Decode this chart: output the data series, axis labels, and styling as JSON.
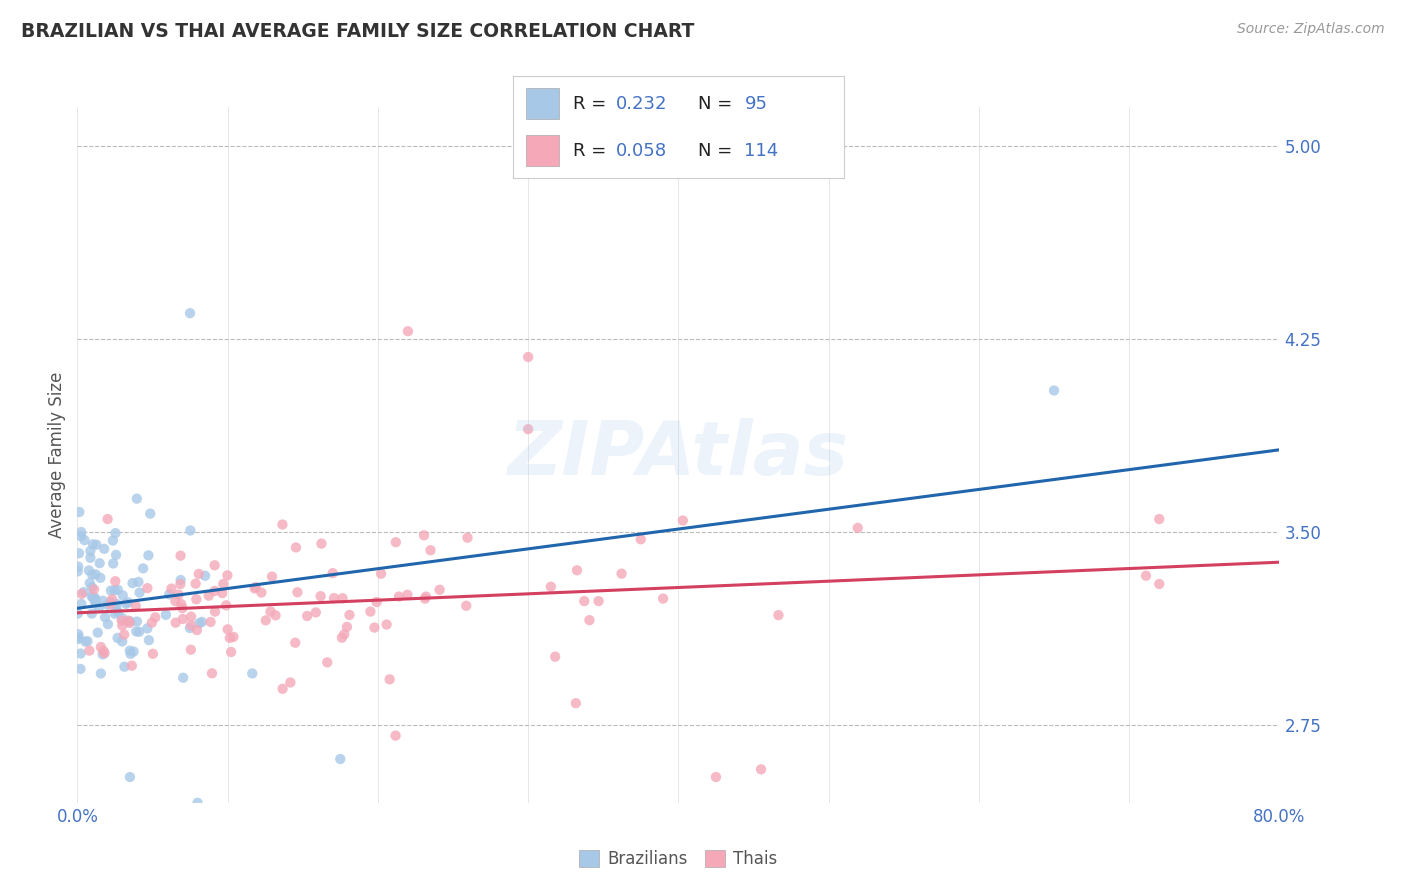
{
  "title": "BRAZILIAN VS THAI AVERAGE FAMILY SIZE CORRELATION CHART",
  "source_text": "Source: ZipAtlas.com",
  "ylabel": "Average Family Size",
  "xlim": [
    0.0,
    0.8
  ],
  "ylim": [
    2.45,
    5.15
  ],
  "yticks": [
    2.75,
    3.5,
    4.25,
    5.0
  ],
  "xticks": [
    0.0,
    0.1,
    0.2,
    0.3,
    0.4,
    0.5,
    0.6,
    0.7,
    0.8
  ],
  "brazil_color": "#a8c8e8",
  "thai_color": "#f4a8b8",
  "brazil_line_color": "#2166ac",
  "thai_line_color": "#d44060",
  "brazil_R": 0.232,
  "brazil_N": 95,
  "thai_R": 0.058,
  "thai_N": 114,
  "legend_label_brazil": "Brazilians",
  "legend_label_thai": "Thais",
  "background_color": "#ffffff",
  "grid_color": "#bbbbbb",
  "tick_label_color": "#4472c4",
  "title_color": "#333333",
  "axis_label_color": "#555555",
  "value_color": "#4472c4",
  "label_black": "#222222"
}
